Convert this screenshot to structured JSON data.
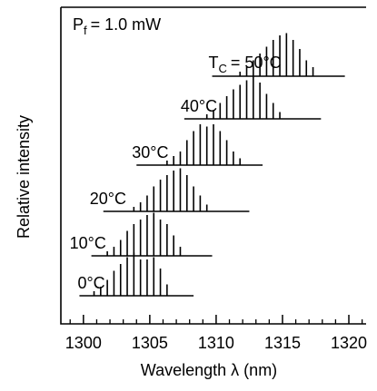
{
  "chart_data": {
    "type": "spectra",
    "power_label": "P",
    "power_subscript": "f",
    "power_value": "= 1.0 mW",
    "xlabel": "Wavelength  λ (nm)",
    "ylabel": "Relative intensity",
    "x_ticks": [
      1300,
      1305,
      1310,
      1315,
      1320
    ],
    "x_tick_labels": [
      "1300",
      "1305",
      "1310",
      "1315",
      "1320"
    ],
    "xlim": [
      1298.3,
      1321.3
    ],
    "x_minor_step": 1,
    "series": [
      {
        "label": "0°C",
        "baseline_range": [
          1299.7,
          1308.3
        ],
        "lines": [
          [
            1300.8,
            0.1
          ],
          [
            1301.3,
            0.2
          ],
          [
            1301.8,
            0.35
          ],
          [
            1302.3,
            0.55
          ],
          [
            1302.8,
            0.7
          ],
          [
            1303.3,
            0.85
          ],
          [
            1303.8,
            0.95
          ],
          [
            1304.3,
            0.8
          ],
          [
            1304.8,
            0.8
          ],
          [
            1305.3,
            0.85
          ],
          [
            1305.8,
            0.6
          ],
          [
            1306.3,
            0.25
          ]
        ]
      },
      {
        "label": "10°C",
        "baseline_range": [
          1300.6,
          1309.7
        ],
        "lines": [
          [
            1301.8,
            0.1
          ],
          [
            1302.3,
            0.2
          ],
          [
            1302.8,
            0.35
          ],
          [
            1303.3,
            0.55
          ],
          [
            1303.8,
            0.7
          ],
          [
            1304.3,
            0.8
          ],
          [
            1304.8,
            0.9
          ],
          [
            1305.3,
            0.95
          ],
          [
            1305.8,
            0.8
          ],
          [
            1306.3,
            0.7
          ],
          [
            1306.8,
            0.45
          ],
          [
            1307.3,
            0.2
          ]
        ]
      },
      {
        "label": "20°C",
        "baseline_range": [
          1301.5,
          1312.5
        ],
        "lines": [
          [
            1303.8,
            0.1
          ],
          [
            1304.3,
            0.2
          ],
          [
            1304.8,
            0.35
          ],
          [
            1305.3,
            0.55
          ],
          [
            1305.8,
            0.7
          ],
          [
            1306.3,
            0.8
          ],
          [
            1306.8,
            0.9
          ],
          [
            1307.3,
            0.95
          ],
          [
            1307.8,
            0.8
          ],
          [
            1308.3,
            0.55
          ],
          [
            1308.8,
            0.35
          ],
          [
            1309.3,
            0.15
          ]
        ]
      },
      {
        "label": "30°C",
        "baseline_range": [
          1304.0,
          1313.5
        ],
        "lines": [
          [
            1306.3,
            0.1
          ],
          [
            1306.8,
            0.2
          ],
          [
            1307.3,
            0.3
          ],
          [
            1307.8,
            0.55
          ],
          [
            1308.3,
            0.75
          ],
          [
            1308.8,
            0.9
          ],
          [
            1309.3,
            0.85
          ],
          [
            1309.8,
            0.9
          ],
          [
            1310.3,
            0.75
          ],
          [
            1310.8,
            0.55
          ],
          [
            1311.3,
            0.3
          ],
          [
            1311.8,
            0.15
          ]
        ]
      },
      {
        "label": "40°C",
        "baseline_range": [
          1307.6,
          1317.9
        ],
        "lines": [
          [
            1309.3,
            0.1
          ],
          [
            1309.8,
            0.2
          ],
          [
            1310.3,
            0.35
          ],
          [
            1310.8,
            0.5
          ],
          [
            1311.3,
            0.65
          ],
          [
            1311.8,
            0.75
          ],
          [
            1312.3,
            0.85
          ],
          [
            1312.8,
            0.95
          ],
          [
            1313.3,
            0.8
          ],
          [
            1313.8,
            0.55
          ],
          [
            1314.3,
            0.35
          ],
          [
            1314.8,
            0.15
          ]
        ]
      },
      {
        "label": "T",
        "label_subscript": "C",
        "label_rest": "= 50°C",
        "baseline_range": [
          1309.7,
          1319.7
        ],
        "lines": [
          [
            1311.8,
            0.1
          ],
          [
            1312.3,
            0.2
          ],
          [
            1312.8,
            0.35
          ],
          [
            1313.3,
            0.5
          ],
          [
            1313.8,
            0.65
          ],
          [
            1314.3,
            0.8
          ],
          [
            1314.8,
            0.9
          ],
          [
            1315.3,
            0.95
          ],
          [
            1315.8,
            0.8
          ],
          [
            1316.3,
            0.6
          ],
          [
            1316.8,
            0.35
          ],
          [
            1317.3,
            0.2
          ]
        ]
      }
    ]
  }
}
